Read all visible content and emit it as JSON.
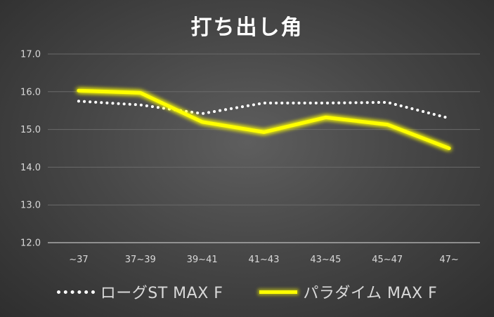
{
  "chart_data": {
    "type": "line",
    "title": "打ち出し角",
    "xlabel": "",
    "ylabel": "",
    "categories": [
      "~37",
      "37~39",
      "39~41",
      "41~43",
      "43~45",
      "45~47",
      "47~"
    ],
    "ylim": [
      12.0,
      17.0
    ],
    "yticks": [
      "12.0",
      "13.0",
      "14.0",
      "15.0",
      "16.0",
      "17.0"
    ],
    "grid": true,
    "legend_position": "bottom",
    "series": [
      {
        "name": "ローグST MAX F",
        "values": [
          15.75,
          15.65,
          15.42,
          15.7,
          15.7,
          15.72,
          15.3
        ],
        "color": "#ffffff",
        "style": "dotted"
      },
      {
        "name": "パラダイム MAX F",
        "values": [
          16.03,
          15.97,
          15.2,
          14.93,
          15.32,
          15.13,
          14.5
        ],
        "color": "#ffff00",
        "style": "solid-glow"
      }
    ]
  }
}
